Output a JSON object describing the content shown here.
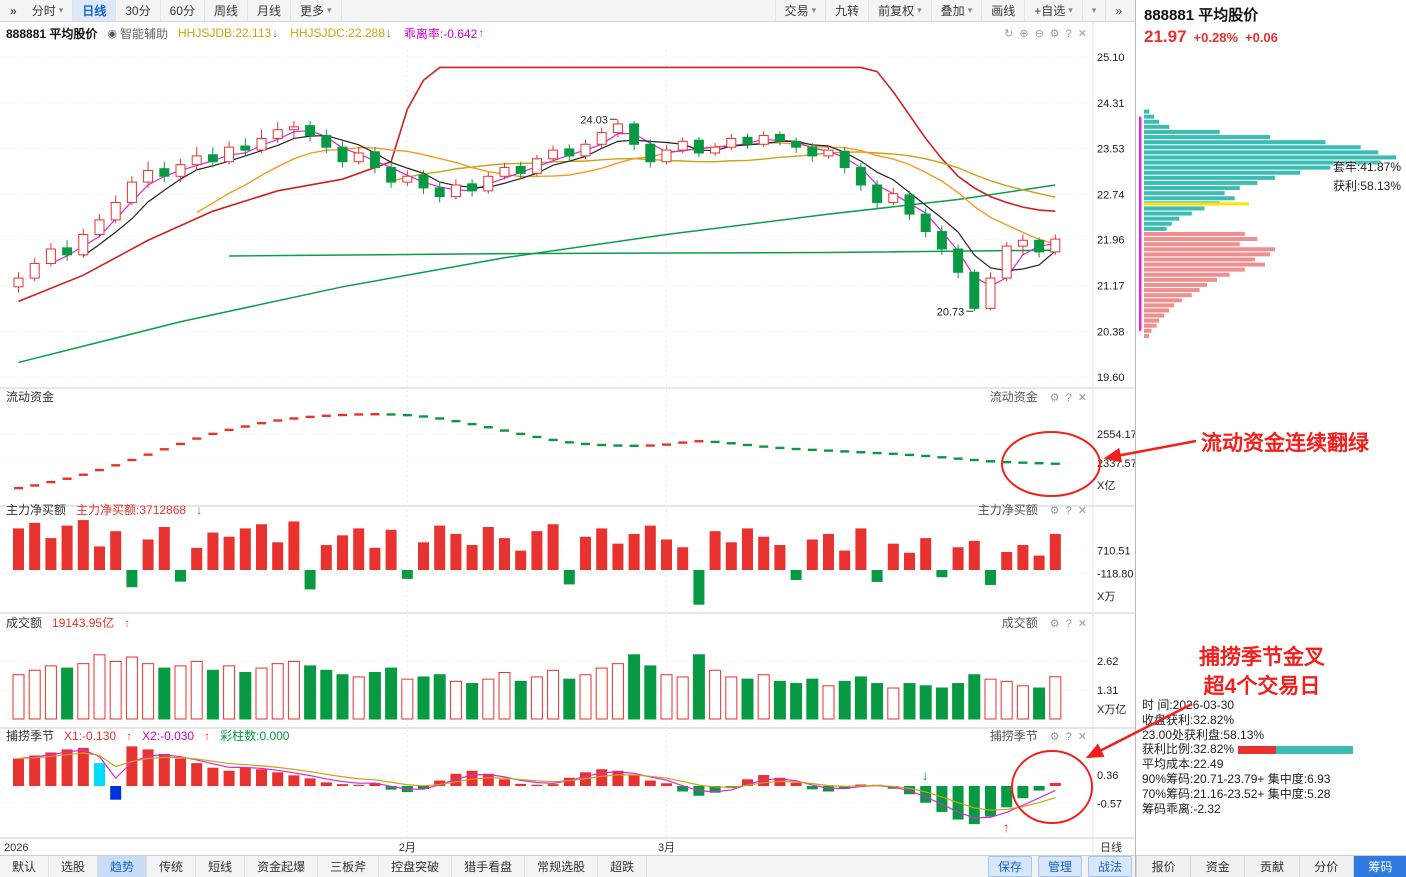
{
  "window": {
    "title": "888881 平均股价"
  },
  "icons": {
    "chevrons": "»",
    "caret": "▾",
    "gear": "⚙",
    "help": "?",
    "close": "✕",
    "refresh": "↻",
    "zoom_in": "⊕",
    "zoom_out": "⊖",
    "assist": "◉",
    "plus": "+"
  },
  "toolbar": {
    "left_items": [
      {
        "label": "分时",
        "dropdown": true
      },
      {
        "label": "日线",
        "active": true
      },
      {
        "label": "30分"
      },
      {
        "label": "60分"
      },
      {
        "label": "周线"
      },
      {
        "label": "月线"
      },
      {
        "label": "更多",
        "dropdown": true
      }
    ],
    "right_items": [
      {
        "label": "交易",
        "dropdown": true
      },
      {
        "label": "九转"
      },
      {
        "label": "前复权",
        "dropdown": true
      },
      {
        "label": "叠加",
        "dropdown": true
      },
      {
        "label": "画线"
      },
      {
        "label": "+自选",
        "dropdown": true
      },
      {
        "label": "",
        "dropdown": true
      },
      {
        "label": "»"
      }
    ]
  },
  "chart_header": {
    "symbol": "888881 平均股价",
    "assist": "智能辅助",
    "indicators": [
      {
        "label": "HHJSJDB:22.113",
        "arrow": "↓",
        "color": "#c9a708",
        "arrow_color": "#089943"
      },
      {
        "label": "HHJSJDC:22.288",
        "arrow": "↓",
        "color": "#c9a708",
        "arrow_color": "#089943"
      },
      {
        "label": "乖离率:-0.642",
        "arrow": "↑",
        "color": "#cc00cc",
        "arrow_color": "#e8322f"
      }
    ]
  },
  "panes": {
    "main": {
      "y_labels": [
        "25.10",
        "24.31",
        "23.53",
        "22.74",
        "21.96",
        "21.17",
        "20.38",
        "19.60"
      ],
      "high_label": "24.03",
      "low_label": "20.73"
    },
    "liquid": {
      "title": "流动资金",
      "right_title": "流动资金",
      "y_labels": [
        "2554.17",
        "2337.57"
      ],
      "unit": "X亿"
    },
    "main_net": {
      "title": "主力净买额",
      "right_title": "主力净买额",
      "value_label": "主力净买额:3712868",
      "arrow": "↓",
      "y_labels": [
        "710.51",
        "-118.80"
      ],
      "unit": "X万"
    },
    "turnover": {
      "title": "成交额",
      "right_title": "成交额",
      "value_label": "19143.95亿",
      "arrow": "↑",
      "y_labels": [
        "2.62",
        "1.31"
      ],
      "unit": "X万亿"
    },
    "fishing": {
      "title": "捕捞季节",
      "right_title": "捕捞季节",
      "x1_label": "X1:-0.130",
      "x1_arrow": "↑",
      "x2_label": "X2:-0.030",
      "x2_arrow": "↑",
      "bars_label": "彩柱数:0.000",
      "y_labels": [
        "0.36",
        "-0.57"
      ]
    }
  },
  "x_axis": {
    "year": "2026",
    "months": [
      {
        "label": "2月",
        "i": 24
      },
      {
        "label": "3月",
        "i": 40
      }
    ],
    "period": "日线"
  },
  "annotations": {
    "liquid_note": "流动资金连续翻绿",
    "fishing_note_line1": "捕捞季节金叉",
    "fishing_note_line2": "超4个交易日"
  },
  "bottom_tabs": {
    "left": [
      "默认",
      "选股",
      "趋势",
      "传统",
      "短线",
      "资金起爆",
      "三板斧",
      "控盘突破",
      "猎手看盘",
      "常规选股",
      "超跌"
    ],
    "active_left": "趋势",
    "buttons": [
      "保存",
      "管理",
      "战法"
    ]
  },
  "right_panel": {
    "title": "888881 平均股价",
    "price": "21.97",
    "change_pct": "+0.28%",
    "change": "+0.06",
    "profile_labels": {
      "trapped": "套牢:41.87%",
      "profit": "获利:58.13%"
    },
    "ratio_red_pct": 32.82,
    "info_lines": [
      "时 间:2026-03-30",
      "收盘获利:32.82%",
      "23.00处获利盘:58.13%",
      "获利比例:32.82%",
      "平均成本:22.49",
      "90%筹码:20.71-23.79+ 集中度:6.93",
      "70%筹码:21.16-23.52+ 集中度:5.28",
      "筹码乖离:-2.32"
    ],
    "tabs": [
      "报价",
      "资金",
      "贡献",
      "分价",
      "筹码"
    ],
    "active_tab": "筹码"
  },
  "chart_data": {
    "type": "candlestick",
    "colors": {
      "up": "#e8322f",
      "down": "#089943",
      "band": "#cc2222",
      "green_line": "#0a9d4e",
      "magenta": "#d928d9",
      "orange": "#f59a23",
      "yellow_line": "#c8a415",
      "black_ma": "#222222",
      "teal": "#3bbdb4",
      "pink": "#f08f8f",
      "yellow_marker": "#ffe400",
      "annotation": "#f2201d",
      "accent_blue": "#1766c8"
    },
    "candles": [
      [
        21.15,
        21.4,
        21.05,
        21.3
      ],
      [
        21.3,
        21.65,
        21.25,
        21.55
      ],
      [
        21.55,
        21.9,
        21.5,
        21.8
      ],
      [
        21.82,
        21.95,
        21.6,
        21.7
      ],
      [
        21.7,
        22.15,
        21.65,
        22.05
      ],
      [
        22.05,
        22.4,
        22.0,
        22.3
      ],
      [
        22.3,
        22.72,
        22.25,
        22.6
      ],
      [
        22.6,
        23.05,
        22.55,
        22.95
      ],
      [
        22.95,
        23.3,
        22.85,
        23.15
      ],
      [
        23.18,
        23.3,
        22.95,
        23.05
      ],
      [
        23.05,
        23.35,
        22.95,
        23.25
      ],
      [
        23.25,
        23.55,
        23.15,
        23.4
      ],
      [
        23.42,
        23.55,
        23.2,
        23.3
      ],
      [
        23.3,
        23.65,
        23.25,
        23.55
      ],
      [
        23.57,
        23.7,
        23.4,
        23.5
      ],
      [
        23.5,
        23.85,
        23.45,
        23.7
      ],
      [
        23.7,
        23.98,
        23.62,
        23.85
      ],
      [
        23.85,
        24.0,
        23.7,
        23.9
      ],
      [
        23.92,
        24.0,
        23.65,
        23.75
      ],
      [
        23.75,
        23.85,
        23.45,
        23.55
      ],
      [
        23.55,
        23.65,
        23.2,
        23.3
      ],
      [
        23.3,
        23.55,
        23.25,
        23.45
      ],
      [
        23.47,
        23.55,
        23.1,
        23.2
      ],
      [
        23.2,
        23.3,
        22.85,
        22.95
      ],
      [
        22.95,
        23.15,
        22.88,
        23.05
      ],
      [
        23.07,
        23.15,
        22.75,
        22.85
      ],
      [
        22.85,
        22.95,
        22.6,
        22.7
      ],
      [
        22.7,
        23.0,
        22.65,
        22.9
      ],
      [
        22.92,
        23.0,
        22.7,
        22.8
      ],
      [
        22.8,
        23.12,
        22.75,
        23.05
      ],
      [
        23.05,
        23.28,
        23.0,
        23.2
      ],
      [
        23.22,
        23.3,
        23.0,
        23.1
      ],
      [
        23.1,
        23.42,
        23.05,
        23.35
      ],
      [
        23.35,
        23.58,
        23.3,
        23.5
      ],
      [
        23.52,
        23.6,
        23.3,
        23.4
      ],
      [
        23.4,
        23.68,
        23.35,
        23.6
      ],
      [
        23.6,
        23.88,
        23.55,
        23.8
      ],
      [
        23.8,
        24.03,
        23.72,
        23.95
      ],
      [
        23.95,
        24.0,
        23.5,
        23.6
      ],
      [
        23.6,
        23.68,
        23.2,
        23.3
      ],
      [
        23.3,
        23.58,
        23.25,
        23.5
      ],
      [
        23.5,
        23.72,
        23.45,
        23.65
      ],
      [
        23.67,
        23.72,
        23.38,
        23.45
      ],
      [
        23.45,
        23.62,
        23.4,
        23.55
      ],
      [
        23.55,
        23.78,
        23.5,
        23.7
      ],
      [
        23.72,
        23.78,
        23.52,
        23.6
      ],
      [
        23.6,
        23.82,
        23.55,
        23.75
      ],
      [
        23.77,
        23.82,
        23.58,
        23.65
      ],
      [
        23.65,
        23.72,
        23.45,
        23.55
      ],
      [
        23.55,
        23.62,
        23.3,
        23.4
      ],
      [
        23.4,
        23.58,
        23.35,
        23.5
      ],
      [
        23.48,
        23.55,
        23.1,
        23.2
      ],
      [
        23.2,
        23.28,
        22.8,
        22.9
      ],
      [
        22.9,
        22.98,
        22.5,
        22.6
      ],
      [
        22.6,
        22.85,
        22.55,
        22.75
      ],
      [
        22.73,
        22.8,
        22.3,
        22.4
      ],
      [
        22.4,
        22.5,
        22.0,
        22.1
      ],
      [
        22.1,
        22.2,
        21.7,
        21.8
      ],
      [
        21.8,
        21.88,
        21.3,
        21.4
      ],
      [
        21.4,
        21.45,
        20.73,
        20.78
      ],
      [
        20.78,
        21.4,
        20.75,
        21.3
      ],
      [
        21.3,
        21.92,
        21.25,
        21.85
      ],
      [
        21.85,
        22.05,
        21.7,
        21.95
      ],
      [
        21.95,
        22.0,
        21.65,
        21.75
      ],
      [
        21.75,
        22.05,
        21.7,
        21.97
      ]
    ],
    "high_i": 37,
    "low_i": 59,
    "band": [
      [
        0,
        20.9
      ],
      [
        4,
        21.35
      ],
      [
        8,
        21.95
      ],
      [
        12,
        22.45
      ],
      [
        16,
        22.8
      ],
      [
        20,
        23.0
      ],
      [
        23,
        23.3
      ],
      [
        24,
        24.2
      ],
      [
        25,
        24.7
      ],
      [
        26,
        24.92
      ],
      [
        52,
        24.92
      ],
      [
        53,
        24.85
      ],
      [
        54,
        24.5
      ],
      [
        55,
        24.1
      ],
      [
        56,
        23.7
      ],
      [
        57,
        23.35
      ],
      [
        58,
        23.05
      ],
      [
        59,
        22.85
      ],
      [
        60,
        22.7
      ],
      [
        61,
        22.6
      ],
      [
        62,
        22.52
      ],
      [
        63,
        22.47
      ],
      [
        64,
        22.45
      ]
    ],
    "green_slow": [
      [
        0,
        19.85
      ],
      [
        10,
        20.55
      ],
      [
        20,
        21.15
      ],
      [
        30,
        21.65
      ],
      [
        40,
        22.05
      ],
      [
        50,
        22.4
      ],
      [
        58,
        22.65
      ],
      [
        64,
        22.9
      ]
    ],
    "green_flat": [
      [
        13,
        21.68
      ],
      [
        30,
        21.72
      ],
      [
        50,
        21.74
      ],
      [
        64,
        21.78
      ]
    ],
    "liquid": [
      2150,
      2170,
      2195,
      2220,
      2250,
      2285,
      2320,
      2360,
      2400,
      2440,
      2480,
      2520,
      2555,
      2585,
      2610,
      2635,
      2655,
      2670,
      2682,
      2690,
      2696,
      2700,
      2702,
      2700,
      2695,
      2685,
      2670,
      2650,
      2628,
      2605,
      2580,
      2555,
      2532,
      2510,
      2492,
      2480,
      2472,
      2468,
      2466,
      2468,
      2475,
      2490,
      2500,
      2495,
      2485,
      2472,
      2460,
      2450,
      2442,
      2436,
      2430,
      2424,
      2418,
      2412,
      2406,
      2398,
      2390,
      2380,
      2370,
      2360,
      2350,
      2344,
      2340,
      2336,
      2332
    ],
    "main_net": [
      1500,
      1700,
      1150,
      1600,
      1800,
      850,
      1400,
      -620,
      1100,
      1550,
      -420,
      800,
      1350,
      1200,
      1500,
      1650,
      1000,
      1750,
      -700,
      900,
      1250,
      1500,
      800,
      1450,
      -320,
      1000,
      1600,
      1300,
      900,
      1550,
      1150,
      700,
      1400,
      1650,
      -520,
      1200,
      1500,
      950,
      1300,
      1600,
      1100,
      820,
      -1250,
      1400,
      1000,
      1500,
      1200,
      900,
      -360,
      1100,
      1300,
      700,
      1500,
      -430,
      950,
      620,
      1150,
      -260,
      820,
      1050,
      -540,
      650,
      900,
      520,
      1300
    ],
    "volumes": [
      2.0,
      2.2,
      2.4,
      2.3,
      2.5,
      2.9,
      2.6,
      2.8,
      2.5,
      2.3,
      2.4,
      2.6,
      2.2,
      2.4,
      2.1,
      2.3,
      2.5,
      2.6,
      2.4,
      2.2,
      2.0,
      1.9,
      2.1,
      2.3,
      1.8,
      1.9,
      2.0,
      1.7,
      1.6,
      1.8,
      2.1,
      1.7,
      1.9,
      2.2,
      1.8,
      2.0,
      2.3,
      2.5,
      2.9,
      2.4,
      2.0,
      1.9,
      2.9,
      2.2,
      1.9,
      1.8,
      2.0,
      1.7,
      1.6,
      1.8,
      1.5,
      1.7,
      1.9,
      1.6,
      1.4,
      1.6,
      1.5,
      1.4,
      1.6,
      2.0,
      1.8,
      1.7,
      1.5,
      1.4,
      1.91
    ],
    "fishing": [
      0.9,
      1.0,
      1.1,
      1.2,
      1.25,
      0.75,
      -0.45,
      1.3,
      1.2,
      1.05,
      0.9,
      0.75,
      0.6,
      0.5,
      0.6,
      0.55,
      0.45,
      0.35,
      0.25,
      0.12,
      0.06,
      0.04,
      0.1,
      -0.12,
      -0.2,
      -0.1,
      0.18,
      0.4,
      0.5,
      0.4,
      0.22,
      0.07,
      0.04,
      0.06,
      0.27,
      0.45,
      0.55,
      0.5,
      0.36,
      0.18,
      0.09,
      -0.18,
      -0.32,
      -0.22,
      -0.07,
      0.22,
      0.36,
      0.27,
      0.11,
      -0.11,
      -0.18,
      -0.09,
      0.05,
      0.04,
      -0.09,
      -0.27,
      -0.55,
      -0.85,
      -1.1,
      -1.25,
      -1.0,
      -0.7,
      -0.4,
      -0.15,
      0.1
    ],
    "fishing_colors": {
      "5": "#00dcff",
      "6": "#0031e0"
    },
    "fishing_down_arrow_i": 56,
    "fishing_up_arrow_i": 61,
    "profile": {
      "start_price": 24.3,
      "step": 0.1,
      "boundary": 21.97,
      "avg_cost": 22.49,
      "fracs": [
        0.02,
        0.04,
        0.06,
        0.1,
        0.3,
        0.5,
        0.72,
        0.86,
        0.93,
        1.0,
        0.94,
        0.74,
        0.62,
        0.52,
        0.45,
        0.38,
        0.32,
        0.36,
        0.3,
        0.24,
        0.19,
        0.14,
        0.11,
        0.09,
        0.4,
        0.45,
        0.38,
        0.52,
        0.5,
        0.44,
        0.48,
        0.4,
        0.34,
        0.29,
        0.25,
        0.22,
        0.19,
        0.15,
        0.12,
        0.1,
        0.08,
        0.06,
        0.05,
        0.03,
        0.02
      ]
    }
  }
}
